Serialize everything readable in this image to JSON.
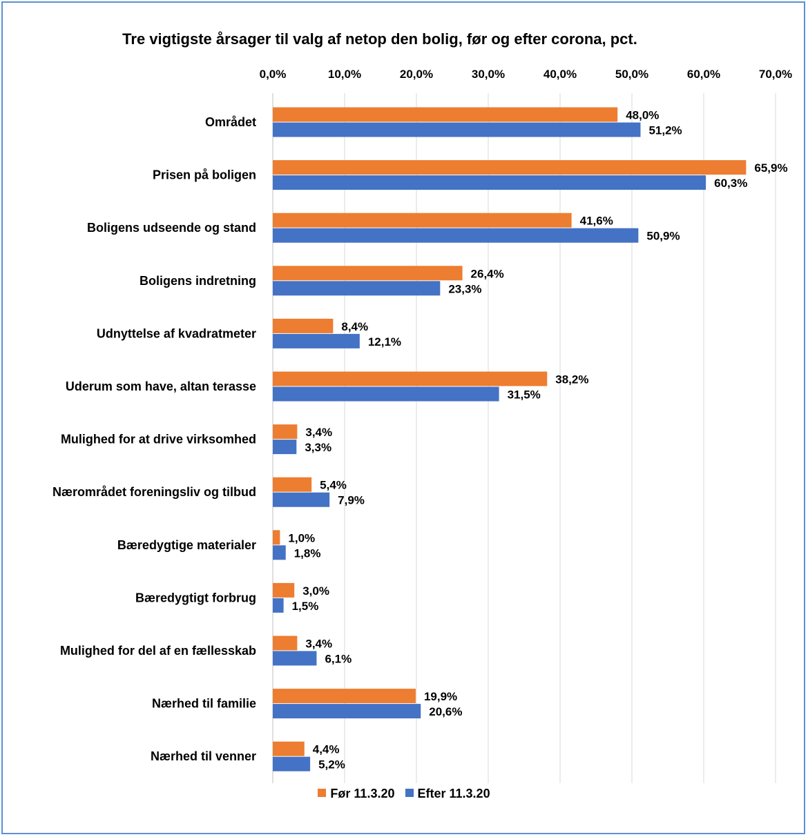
{
  "chart_data": {
    "type": "bar",
    "orientation": "horizontal",
    "title": "Tre vigtigste årsager til valg af netop den bolig, før og efter corona, pct.",
    "categories": [
      "Området",
      "Prisen på boligen",
      "Boligens udseende og stand",
      "Boligens indretning",
      "Udnyttelse af kvadratmeter",
      "Uderum som have, altan terasse",
      "Mulighed for at drive virksomhed",
      "Nærområdet foreningsliv og tilbud",
      "Bæredygtige materialer",
      "Bæredygtigt forbrug",
      "Mulighed for del af en fællesskab",
      "Nærhed til familie",
      "Nærhed til venner"
    ],
    "series": [
      {
        "name": "Før 11.3.20",
        "color": "#ed7d31",
        "values": [
          48.0,
          65.9,
          41.6,
          26.4,
          8.4,
          38.2,
          3.4,
          5.4,
          1.0,
          3.0,
          3.4,
          19.9,
          4.4
        ],
        "labels": [
          "48,0%",
          "65,9%",
          "41,6%",
          "26,4%",
          "8,4%",
          "38,2%",
          "3,4%",
          "5,4%",
          "1,0%",
          "3,0%",
          "3,4%",
          "19,9%",
          "4,4%"
        ]
      },
      {
        "name": "Efter 11.3.20",
        "color": "#4472c4",
        "values": [
          51.2,
          60.3,
          50.9,
          23.3,
          12.1,
          31.5,
          3.3,
          7.9,
          1.8,
          1.5,
          6.1,
          20.6,
          5.2
        ],
        "labels": [
          "51,2%",
          "60,3%",
          "50,9%",
          "23,3%",
          "12,1%",
          "31,5%",
          "3,3%",
          "7,9%",
          "1,8%",
          "1,5%",
          "6,1%",
          "20,6%",
          "5,2%"
        ]
      }
    ],
    "xlim": [
      0,
      70
    ],
    "ticks": [
      0,
      10,
      20,
      30,
      40,
      50,
      60,
      70
    ],
    "tick_labels": [
      "0,0%",
      "10,0%",
      "20,0%",
      "30,0%",
      "40,0%",
      "50,0%",
      "60,0%",
      "70,0%"
    ],
    "x_axis_position": "top",
    "grid": true,
    "legend": "bottom"
  }
}
